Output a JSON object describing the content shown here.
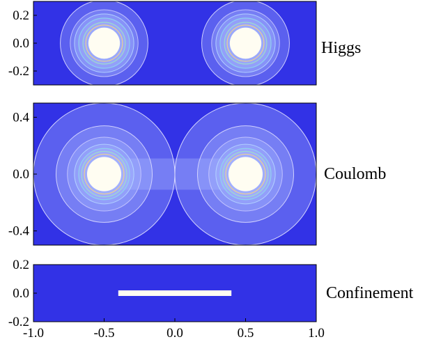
{
  "chart_data": [
    {
      "type": "heatmap",
      "label": "Higgs",
      "xlim": [
        -1.0,
        1.0
      ],
      "ylim": [
        -0.3,
        0.3
      ],
      "yticks": [
        "0.2",
        "0.0",
        "-0.2"
      ],
      "ytick_values": [
        0.2,
        0.0,
        -0.2
      ],
      "sources": [
        {
          "x": -0.5,
          "y": 0.0
        },
        {
          "x": 0.5,
          "y": 0.0
        }
      ],
      "core_radius": 0.12,
      "contour_radii": [
        0.13,
        0.15,
        0.18,
        0.21,
        0.24,
        0.31
      ]
    },
    {
      "type": "heatmap",
      "label": "Coulomb",
      "xlim": [
        -1.0,
        1.0
      ],
      "ylim": [
        -0.5,
        0.5
      ],
      "yticks": [
        "0.4",
        "0.0",
        "-0.4"
      ],
      "ytick_values": [
        0.4,
        0.0,
        -0.4
      ],
      "sources": [
        {
          "x": -0.5,
          "y": 0.0
        },
        {
          "x": 0.5,
          "y": 0.0
        }
      ],
      "core_radius": 0.13,
      "contour_radii": [
        0.14,
        0.16,
        0.18,
        0.21,
        0.26,
        0.34,
        0.5
      ]
    },
    {
      "type": "heatmap",
      "label": "Confinement",
      "xlim": [
        -1.0,
        1.0
      ],
      "ylim": [
        -0.2,
        0.2
      ],
      "yticks": [
        "0.2",
        "0.0",
        "-0.2"
      ],
      "ytick_values": [
        0.2,
        0.0,
        -0.2
      ],
      "flux_tube": {
        "x_start": -0.4,
        "x_end": 0.4,
        "y": 0.0
      }
    }
  ],
  "x_axis": {
    "ticks": [
      "-1.0",
      "-0.5",
      "0.0",
      "0.5",
      "1.0"
    ],
    "tick_values": [
      -1.0,
      -0.5,
      0.0,
      0.5,
      1.0
    ]
  },
  "colors": {
    "background": "#3232e6",
    "core": "#fffdf2"
  }
}
